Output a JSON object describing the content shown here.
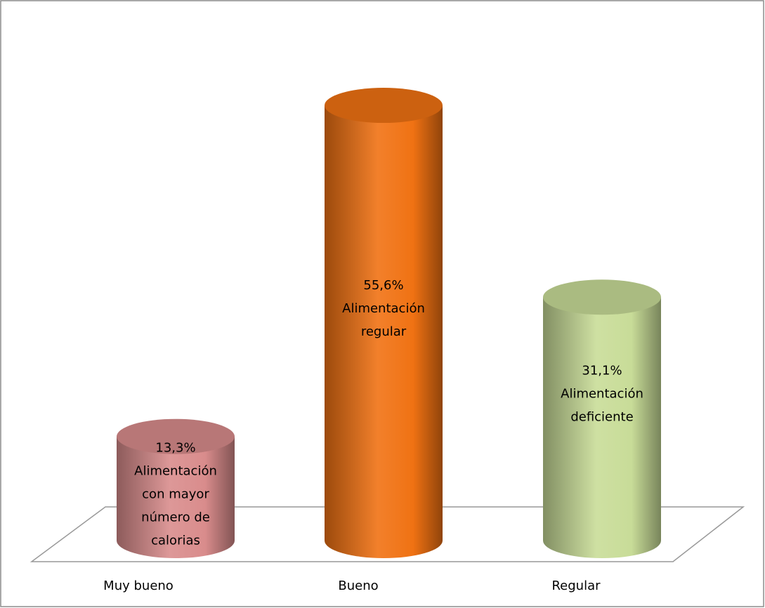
{
  "chart_data": {
    "type": "bar",
    "categories": [
      "Muy bueno",
      "Bueno",
      "Regular"
    ],
    "values": [
      13.3,
      55.6,
      31.1
    ],
    "value_labels": [
      "13,3%",
      "55,6%",
      "31,1%"
    ],
    "annotations": [
      [
        "Alimentación",
        "con mayor",
        "número de",
        "calorias"
      ],
      [
        "Alimentación",
        "regular"
      ],
      [
        "Alimentación",
        "deficiente"
      ]
    ],
    "colors": [
      "#d98c8c",
      "#f07213",
      "#c8dc98"
    ],
    "grid": false
  }
}
